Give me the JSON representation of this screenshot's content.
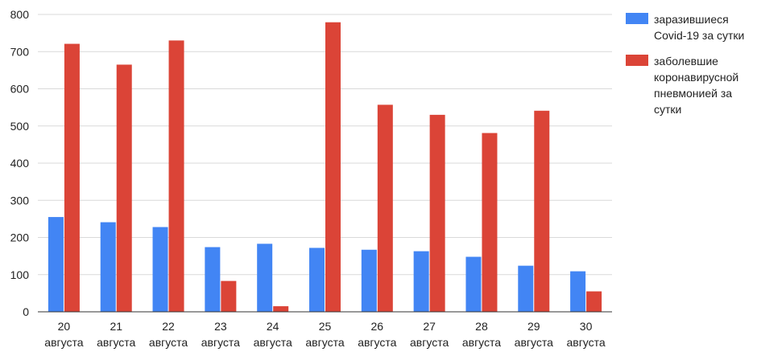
{
  "chart_data": {
    "type": "bar",
    "title": "",
    "xlabel": "",
    "ylabel": "",
    "ylim": [
      0,
      800
    ],
    "yticks": [
      0,
      100,
      200,
      300,
      400,
      500,
      600,
      700,
      800
    ],
    "grid": true,
    "legend_position": "right",
    "categories": [
      [
        "20",
        "августа"
      ],
      [
        "21",
        "августа"
      ],
      [
        "22",
        "августа"
      ],
      [
        "23",
        "августа"
      ],
      [
        "24",
        "августа"
      ],
      [
        "25",
        "августа"
      ],
      [
        "26",
        "августа"
      ],
      [
        "27",
        "августа"
      ],
      [
        "28",
        "августа"
      ],
      [
        "29",
        "августа"
      ],
      [
        "30",
        "августа"
      ]
    ],
    "series": [
      {
        "name": "заразившиеся Covid-19 за сутки",
        "name_lines": [
          "заразившиеся",
          "Covid-19 за сутки"
        ],
        "color": "#4285f4",
        "values": [
          255,
          241,
          228,
          174,
          183,
          172,
          167,
          163,
          148,
          124,
          109
        ]
      },
      {
        "name": "заболевшие коронавирусной пневмонией за сутки",
        "name_lines": [
          "заболевшие",
          "коронавирусной",
          "пневмонией за",
          "сутки"
        ],
        "color": "#db4437",
        "values": [
          721,
          665,
          730,
          83,
          15,
          779,
          557,
          530,
          481,
          541,
          55
        ]
      }
    ]
  }
}
